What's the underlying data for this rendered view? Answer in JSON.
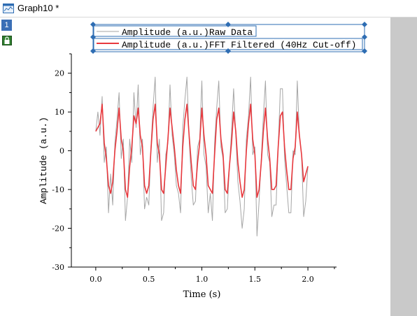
{
  "window": {
    "title": "Graph10 *",
    "layer_number": "1",
    "colors": {
      "accent": "#3b6fb6",
      "scroll": "#c9c9c9"
    }
  },
  "chart_data": {
    "type": "line",
    "xlabel": "Time (s)",
    "ylabel": "Amplitude (a.u.)",
    "xlim": [
      -0.23,
      2.27
    ],
    "ylim": [
      -30,
      25
    ],
    "xticks": [
      0.0,
      0.5,
      1.0,
      1.5,
      2.0
    ],
    "xtick_labels": [
      "0.0",
      "0.5",
      "1.0",
      "1.5",
      "2.0"
    ],
    "yticks": [
      -30,
      -20,
      -10,
      0,
      10,
      20
    ],
    "ytick_labels": [
      "-30",
      "-20",
      "-10",
      "0",
      "10",
      "20"
    ],
    "grid": false,
    "legend_position": "top",
    "series": [
      {
        "name": "Amplitude (a.u.)Raw Data",
        "color": "#a6a6a6",
        "x": [
          0.0,
          0.02,
          0.04,
          0.06,
          0.08,
          0.1,
          0.12,
          0.14,
          0.16,
          0.18,
          0.2,
          0.22,
          0.24,
          0.26,
          0.28,
          0.3,
          0.32,
          0.34,
          0.36,
          0.38,
          0.4,
          0.42,
          0.44,
          0.46,
          0.48,
          0.5,
          0.52,
          0.54,
          0.56,
          0.58,
          0.6,
          0.62,
          0.64,
          0.66,
          0.68,
          0.7,
          0.72,
          0.74,
          0.76,
          0.78,
          0.8,
          0.82,
          0.84,
          0.86,
          0.88,
          0.9,
          0.92,
          0.94,
          0.96,
          0.98,
          1.0,
          1.02,
          1.04,
          1.06,
          1.08,
          1.1,
          1.12,
          1.14,
          1.16,
          1.18,
          1.2,
          1.22,
          1.24,
          1.26,
          1.28,
          1.3,
          1.32,
          1.34,
          1.36,
          1.38,
          1.4,
          1.42,
          1.44,
          1.46,
          1.48,
          1.5,
          1.52,
          1.54,
          1.56,
          1.58,
          1.6,
          1.62,
          1.64,
          1.66,
          1.68,
          1.7,
          1.72,
          1.74,
          1.76,
          1.78,
          1.8,
          1.82,
          1.84,
          1.86,
          1.88,
          1.9,
          1.92,
          1.94,
          1.96,
          1.98,
          2.0
        ],
        "y": [
          5,
          10,
          4,
          14,
          -3,
          1,
          -16,
          -6,
          -14,
          2,
          8,
          15,
          -2,
          3,
          -18,
          -12,
          3,
          -3,
          15,
          6,
          17,
          -1,
          3,
          -15,
          -12,
          -14,
          1,
          11,
          19,
          -3,
          3,
          -18,
          -16,
          -1,
          2,
          17,
          4,
          -1,
          -9,
          -11,
          -16,
          6,
          13,
          19,
          3,
          -7,
          -14,
          -13,
          1,
          3,
          18,
          -1,
          -4,
          -16,
          -11,
          -18,
          2,
          11,
          18,
          1,
          -2,
          -16,
          -15,
          -4,
          5,
          16,
          4,
          -8,
          -13,
          -20,
          -15,
          3,
          9,
          19,
          -1,
          1,
          -22,
          -13,
          -2,
          9,
          18,
          -1,
          -3,
          -17,
          -14,
          -14,
          1,
          16,
          16,
          -2,
          -9,
          -16,
          -16,
          0,
          -1,
          18,
          4,
          -1,
          -17,
          -13,
          -4
        ]
      },
      {
        "name": "Amplitude (a.u.)FFT Filtered (40Hz Cut-off)",
        "color": "#e8383d",
        "x": [
          0.0,
          0.02,
          0.04,
          0.06,
          0.08,
          0.1,
          0.12,
          0.14,
          0.16,
          0.18,
          0.2,
          0.22,
          0.24,
          0.26,
          0.28,
          0.3,
          0.32,
          0.34,
          0.36,
          0.38,
          0.4,
          0.42,
          0.44,
          0.46,
          0.48,
          0.5,
          0.52,
          0.54,
          0.56,
          0.58,
          0.6,
          0.62,
          0.64,
          0.66,
          0.68,
          0.7,
          0.72,
          0.74,
          0.76,
          0.78,
          0.8,
          0.82,
          0.84,
          0.86,
          0.88,
          0.9,
          0.92,
          0.94,
          0.96,
          0.98,
          1.0,
          1.02,
          1.04,
          1.06,
          1.08,
          1.1,
          1.12,
          1.14,
          1.16,
          1.18,
          1.2,
          1.22,
          1.24,
          1.26,
          1.28,
          1.3,
          1.32,
          1.34,
          1.36,
          1.38,
          1.4,
          1.42,
          1.44,
          1.46,
          1.48,
          1.5,
          1.52,
          1.54,
          1.56,
          1.58,
          1.6,
          1.62,
          1.64,
          1.66,
          1.68,
          1.7,
          1.72,
          1.74,
          1.76,
          1.78,
          1.8,
          1.82,
          1.84,
          1.86,
          1.88,
          1.9,
          1.92,
          1.94,
          1.96,
          1.98,
          2.0
        ],
        "y": [
          5,
          6,
          7,
          12,
          2,
          -2,
          -9,
          -11,
          -8,
          0,
          5,
          11,
          3,
          0,
          -10,
          -12,
          -4,
          1,
          9,
          7,
          11,
          4,
          1,
          -9,
          -11,
          -9,
          0,
          8,
          12,
          2,
          -1,
          -10,
          -11,
          -4,
          3,
          11,
          6,
          1,
          -5,
          -9,
          -11,
          1,
          8,
          12,
          4,
          -3,
          -9,
          -10,
          -3,
          2,
          11,
          4,
          -1,
          -9,
          -10,
          -11,
          -1,
          8,
          11,
          3,
          -1,
          -10,
          -11,
          -4,
          2,
          10,
          5,
          -3,
          -8,
          -12,
          -10,
          0,
          7,
          12,
          3,
          -1,
          -12,
          -10,
          -3,
          5,
          11,
          3,
          -2,
          -10,
          -10,
          -9,
          1,
          9,
          10,
          1,
          -5,
          -10,
          -10,
          -2,
          1,
          10,
          4,
          -1,
          -8,
          -6,
          -4
        ]
      }
    ]
  }
}
